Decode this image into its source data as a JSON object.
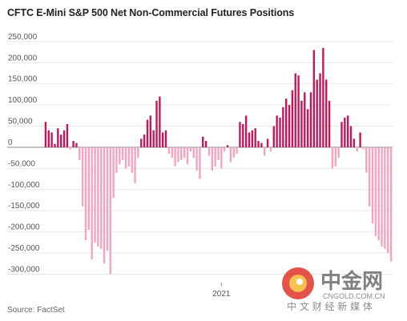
{
  "title": "CFTC E-Mini S&P 500 Net Non-Commercial Futures Positions",
  "source": "Source: FactSet",
  "colors": {
    "positive": "#c2185b",
    "negative": "#f4a3c0",
    "grid": "#e3e3e3",
    "zero_line": "#888888"
  },
  "watermark": {
    "name": "中金网",
    "url": "CNGOLD.COM.CN",
    "tagline": "中 文 财 经 新 媒 体",
    "logo_color": "#e0352b"
  },
  "chart_data": {
    "type": "bar",
    "title": "CFTC E-Mini S&P 500 Net Non-Commercial Futures Positions",
    "xlabel": "",
    "ylabel": "",
    "ylim": [
      -320000,
      265000
    ],
    "yticks": [
      250000,
      200000,
      150000,
      100000,
      50000,
      0,
      -50000,
      -100000,
      -150000,
      -200000,
      -250000,
      -300000
    ],
    "ytick_labels": [
      "250,000",
      "200,000",
      "150,000",
      "100,000",
      "50,000",
      "0",
      "-50,000",
      "-100,000",
      "-150,000",
      "-200,000",
      "-250,000",
      "-300,000"
    ],
    "xtick_labels": [
      {
        "label": "2021",
        "index": 57
      }
    ],
    "grid": true,
    "values": [
      60000,
      40000,
      35000,
      8000,
      45000,
      30000,
      40000,
      55000,
      -5000,
      15000,
      10000,
      -30000,
      -140000,
      -220000,
      -195000,
      -265000,
      -225000,
      -235000,
      -240000,
      -275000,
      -245000,
      -300000,
      -120000,
      -60000,
      -40000,
      -30000,
      -50000,
      -45000,
      -60000,
      -85000,
      -25000,
      20000,
      30000,
      65000,
      75000,
      40000,
      110000,
      120000,
      35000,
      40000,
      -15000,
      -25000,
      -45000,
      -35000,
      -30000,
      -25000,
      -40000,
      -10000,
      -25000,
      -55000,
      -75000,
      25000,
      15000,
      -20000,
      -55000,
      -45000,
      -30000,
      -50000,
      -10000,
      5000,
      -35000,
      -25000,
      -15000,
      60000,
      55000,
      75000,
      35000,
      40000,
      45000,
      15000,
      10000,
      -20000,
      20000,
      -10000,
      50000,
      75000,
      70000,
      95000,
      115000,
      100000,
      135000,
      175000,
      170000,
      110000,
      130000,
      90000,
      130000,
      230000,
      160000,
      175000,
      235000,
      160000,
      110000,
      -50000,
      -45000,
      -25000,
      60000,
      70000,
      75000,
      50000,
      20000,
      -10000,
      35000,
      -5000,
      -60000,
      -140000,
      -180000,
      -210000,
      -220000,
      -235000,
      -240000,
      -250000,
      -270000
    ]
  }
}
